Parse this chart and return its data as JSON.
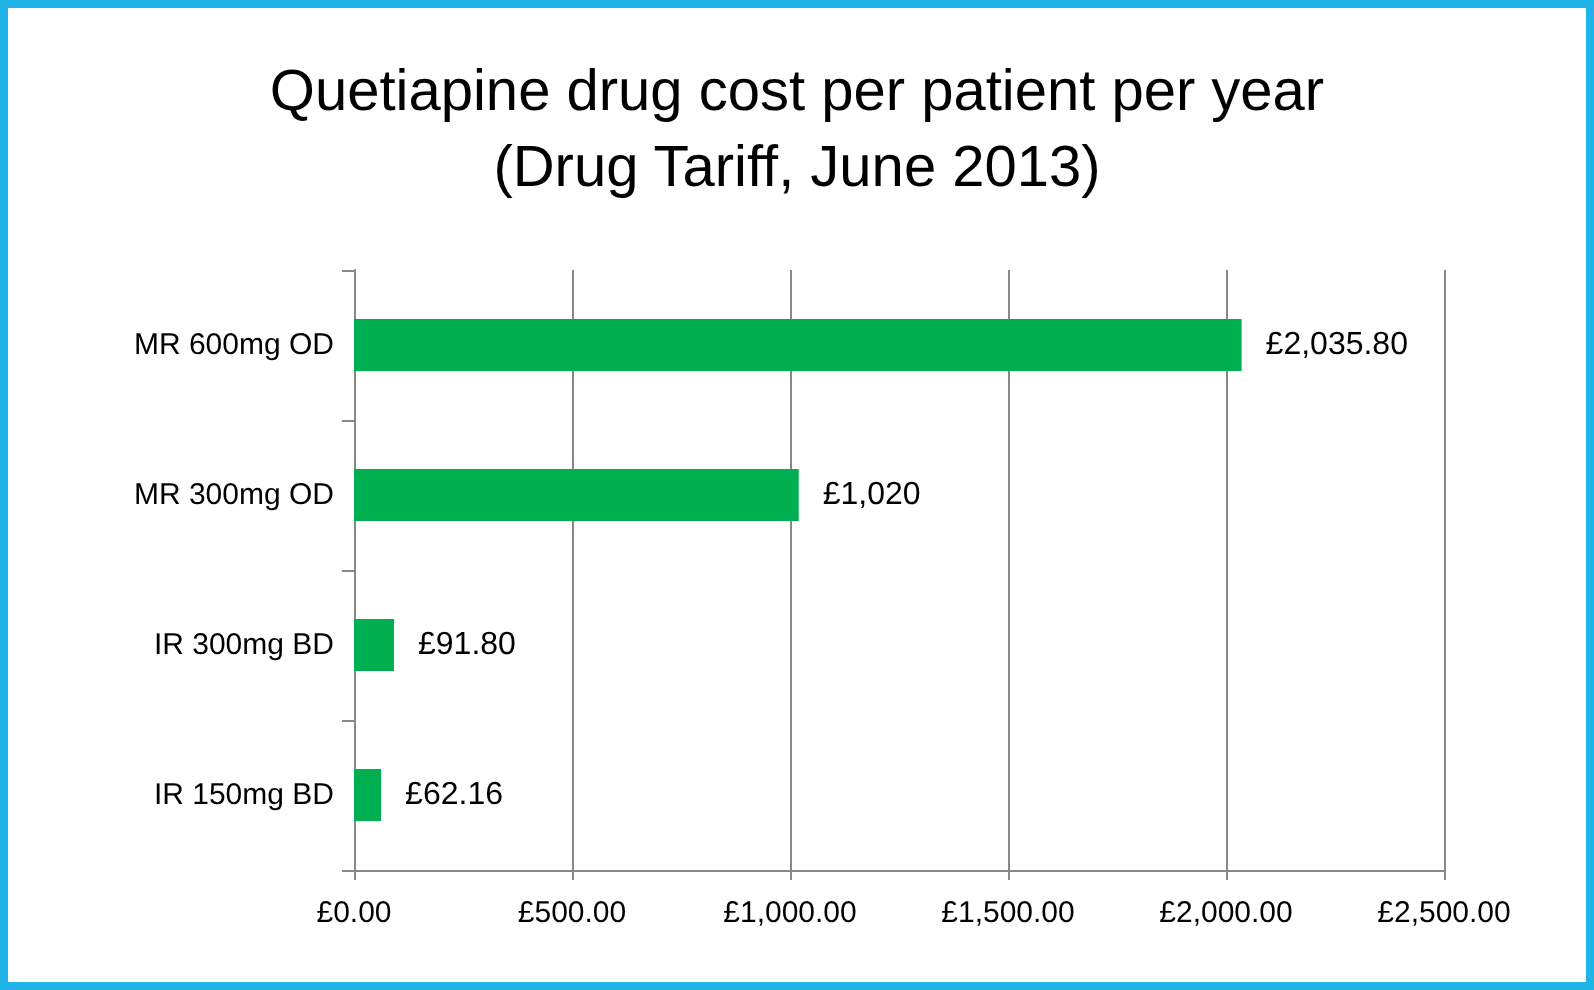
{
  "chart_data": {
    "type": "bar",
    "orientation": "horizontal",
    "title": "Quetiapine drug cost per patient per year\n(Drug Tariff, June 2013)",
    "categories": [
      "MR 600mg OD",
      "MR 300mg OD",
      "IR 300mg BD",
      "IR 150mg BD"
    ],
    "values": [
      2035.8,
      1020,
      91.8,
      62.16
    ],
    "value_labels": [
      "£2,035.80",
      "£1,020",
      "£91.80",
      "£62.16"
    ],
    "color": "#00b050",
    "xlim": [
      0,
      2500
    ],
    "xticks": [
      {
        "value": 0,
        "label": "£0.00"
      },
      {
        "value": 500,
        "label": "£500.00"
      },
      {
        "value": 1000,
        "label": "£1,000.00"
      },
      {
        "value": 1500,
        "label": "£1,500.00"
      },
      {
        "value": 2000,
        "label": "£2,000.00"
      },
      {
        "value": 2500,
        "label": "£2,500.00"
      }
    ],
    "grid": "x"
  }
}
